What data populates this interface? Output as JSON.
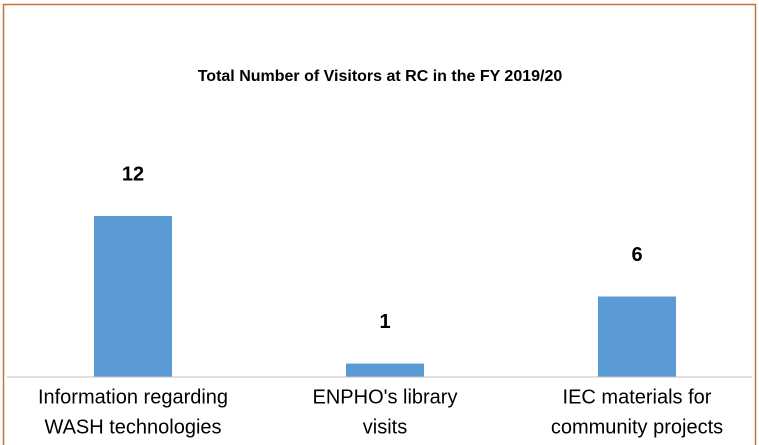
{
  "chart_data": {
    "type": "bar",
    "title": "Total Number of Visitors at RC in the FY 2019/20",
    "categories": [
      [
        "Information regarding",
        "WASH technologies"
      ],
      [
        "ENPHO's library",
        "visits"
      ],
      [
        "IEC materials for",
        "community projects"
      ]
    ],
    "values": [
      12,
      1,
      6
    ],
    "color": "#5b9bd5"
  }
}
